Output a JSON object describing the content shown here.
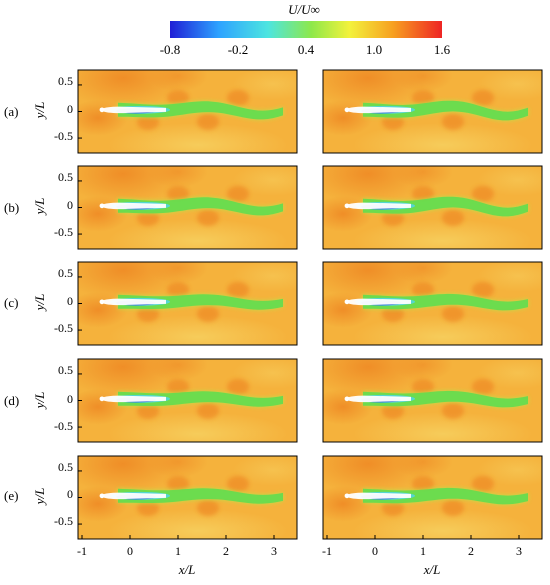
{
  "colorbar": {
    "title": "U/U∞",
    "tick_labels": [
      "-0.8",
      "-0.2",
      "0.4",
      "1.0",
      "1.6"
    ],
    "colors": [
      "#1f1fd6",
      "#2ea3ff",
      "#4de5e0",
      "#8ee84a",
      "#f3f23c",
      "#f7a020",
      "#ee2424"
    ]
  },
  "row_labels": [
    "(a)",
    "(b)",
    "(c)",
    "(d)",
    "(e)"
  ],
  "columns": 2,
  "y_axis": {
    "label": "y/L",
    "tick_labels": [
      "0.5",
      "0",
      "-0.5"
    ]
  },
  "x_axis": {
    "label": "x/L",
    "tick_labels": [
      "-1",
      "0",
      "1",
      "2",
      "3"
    ]
  },
  "field_colors": {
    "background": "#f5b23c",
    "upper_dark": "#ef8c26",
    "lower_light": "#f6cf5e",
    "wake": "#63dc4f",
    "wake_light": "#b6e64a",
    "low_speed": "#2a66d8",
    "body": "#ffffff"
  }
}
